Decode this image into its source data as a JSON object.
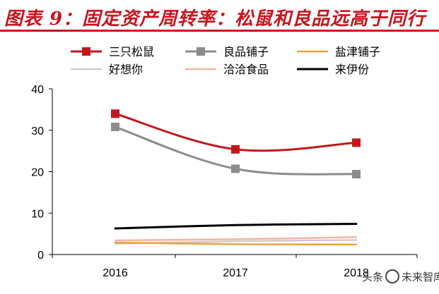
{
  "header": {
    "title": "图表 9：固定资产周转率：松鼠和良品远高于同行"
  },
  "watermark": {
    "left_text": "头条",
    "right_text": "未来智库"
  },
  "chart_data": {
    "type": "line",
    "title": "",
    "xlabel": "",
    "ylabel": "",
    "x": [
      "2016",
      "2017",
      "2018"
    ],
    "ylim": [
      0,
      40
    ],
    "yticks": [
      0,
      10,
      20,
      30,
      40
    ],
    "grid": false,
    "legend_position": "top",
    "series": [
      {
        "name": "三只松鼠",
        "values": [
          34.0,
          25.4,
          27.0
        ],
        "color": "#c0181c",
        "marker": "square"
      },
      {
        "name": "良品铺子",
        "values": [
          30.8,
          20.7,
          19.4
        ],
        "color": "#8c8c8c",
        "marker": "square"
      },
      {
        "name": "盐津铺子",
        "values": [
          2.9,
          2.5,
          2.4
        ],
        "color": "#f0a040",
        "marker": "none"
      },
      {
        "name": "好想你",
        "values": [
          2.6,
          3.2,
          3.5
        ],
        "color": "#cccccc",
        "marker": "none"
      },
      {
        "name": "洽洽食品",
        "values": [
          3.4,
          3.7,
          4.2
        ],
        "color": "#f0b4a4",
        "marker": "none"
      },
      {
        "name": "来伊份",
        "values": [
          6.3,
          7.1,
          7.4
        ],
        "color": "#000000",
        "marker": "none"
      }
    ]
  }
}
